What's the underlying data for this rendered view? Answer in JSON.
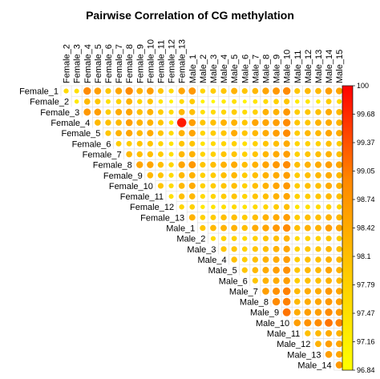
{
  "chart_data": {
    "type": "heatmap",
    "title": "Pairwise Correlation of CG methylation",
    "row_labels": [
      "Female_1",
      "Female_2",
      "Female_3",
      "Female_4",
      "Female_5",
      "Female_6",
      "Female_7",
      "Female_8",
      "Female_9",
      "Female_10",
      "Female_11",
      "Female_12",
      "Female_13",
      "Male_1",
      "Male_2",
      "Male_3",
      "Male_4",
      "Male_5",
      "Male_6",
      "Male_7",
      "Male_8",
      "Male_9",
      "Male_10",
      "Male_11",
      "Male_12",
      "Male_13",
      "Male_14"
    ],
    "col_labels": [
      "Female_2",
      "Female_3",
      "Female_4",
      "Female_5",
      "Female_6",
      "Female_7",
      "Female_8",
      "Female_9",
      "Female_10",
      "Female_11",
      "Female_12",
      "Female_13",
      "Male_1",
      "Male_2",
      "Male_3",
      "Male_4",
      "Male_5",
      "Male_6",
      "Male_7",
      "Male_8",
      "Male_9",
      "Male_10",
      "Male_11",
      "Male_12",
      "Male_13",
      "Male_14",
      "Male_15"
    ],
    "legend_ticks": [
      "100",
      "99.68",
      "99.37",
      "99.05",
      "98.74",
      "98.42",
      "98.1",
      "97.79",
      "97.47",
      "97.16",
      "96.84"
    ],
    "value_range": [
      96.84,
      100
    ],
    "color_scale": [
      "#ffff00",
      "#ffcc00",
      "#ff8800",
      "#ff0000"
    ],
    "shape": "circle",
    "layout": "upper-triangle",
    "values": [
      [
        97.6,
        97.5,
        98.9,
        98.6,
        98.0,
        98.5,
        98.9,
        98.3,
        98.6,
        98.0,
        97.6,
        98.5,
        98.7,
        97.7,
        97.9,
        98.0,
        98.3,
        98.0,
        98.2,
        98.5,
        98.7,
        98.9,
        98.0,
        98.2,
        98.2,
        98.6,
        98.5
      ],
      [
        null,
        97.3,
        98.2,
        98.0,
        97.5,
        97.8,
        98.3,
        97.7,
        98.0,
        97.4,
        97.1,
        97.6,
        97.9,
        97.1,
        97.0,
        97.3,
        97.5,
        97.1,
        97.4,
        97.6,
        97.8,
        98.0,
        97.3,
        97.4,
        97.3,
        97.9,
        97.6
      ],
      [
        null,
        null,
        98.7,
        98.6,
        97.9,
        98.4,
        98.5,
        98.1,
        98.3,
        97.9,
        97.6,
        98.2,
        98.1,
        97.5,
        97.6,
        97.7,
        97.9,
        97.6,
        97.8,
        98.3,
        98.3,
        98.7,
        97.9,
        98.0,
        98.1,
        98.4,
        98.2
      ],
      [
        null,
        null,
        null,
        98.2,
        98.1,
        98.2,
        98.6,
        98.3,
        98.3,
        98.0,
        97.4,
        99.8,
        98.6,
        98.0,
        98.1,
        98.3,
        98.3,
        98.0,
        98.5,
        98.5,
        98.6,
        98.9,
        98.0,
        98.0,
        98.3,
        98.4,
        98.3
      ],
      [
        null,
        null,
        null,
        null,
        98.0,
        98.3,
        98.5,
        98.2,
        98.4,
        98.0,
        97.6,
        98.3,
        98.5,
        97.7,
        97.9,
        98.0,
        98.4,
        98.0,
        98.2,
        98.4,
        98.6,
        98.9,
        97.9,
        98.2,
        98.2,
        98.5,
        98.4
      ],
      [
        null,
        null,
        null,
        null,
        null,
        97.9,
        97.9,
        98.0,
        98.0,
        97.7,
        97.4,
        98.0,
        98.0,
        97.4,
        97.6,
        97.7,
        97.8,
        97.5,
        97.8,
        98.0,
        98.1,
        98.4,
        97.7,
        97.8,
        97.8,
        98.1,
        97.9
      ],
      [
        null,
        null,
        null,
        null,
        null,
        null,
        98.2,
        98.1,
        98.1,
        97.9,
        97.5,
        98.2,
        98.3,
        97.7,
        97.8,
        98.0,
        98.0,
        97.8,
        98.0,
        98.2,
        98.4,
        98.6,
        97.8,
        98.0,
        98.1,
        98.3,
        98.1
      ],
      [
        null,
        null,
        null,
        null,
        null,
        null,
        null,
        98.5,
        98.5,
        98.1,
        97.7,
        98.5,
        98.7,
        98.0,
        98.1,
        98.3,
        98.4,
        98.1,
        98.3,
        98.5,
        98.7,
        98.9,
        98.1,
        98.3,
        98.4,
        98.6,
        98.5
      ],
      [
        null,
        null,
        null,
        null,
        null,
        null,
        null,
        null,
        98.2,
        98.0,
        97.6,
        98.2,
        98.3,
        97.8,
        97.9,
        98.1,
        98.2,
        97.9,
        98.1,
        98.3,
        98.4,
        98.6,
        97.9,
        98.1,
        98.2,
        98.4,
        98.2
      ],
      [
        null,
        null,
        null,
        null,
        null,
        null,
        null,
        null,
        null,
        98.0,
        97.6,
        98.2,
        98.4,
        97.8,
        97.9,
        98.0,
        98.1,
        97.8,
        98.1,
        98.3,
        98.5,
        98.7,
        97.9,
        98.1,
        98.1,
        98.4,
        98.3
      ],
      [
        null,
        null,
        null,
        null,
        null,
        null,
        null,
        null,
        null,
        null,
        97.5,
        98.1,
        98.2,
        97.6,
        97.7,
        97.9,
        98.0,
        97.7,
        98.0,
        98.1,
        98.3,
        98.5,
        97.8,
        97.9,
        98.0,
        98.2,
        98.1
      ],
      [
        null,
        null,
        null,
        null,
        null,
        null,
        null,
        null,
        null,
        null,
        null,
        97.7,
        97.8,
        97.3,
        97.4,
        97.5,
        97.6,
        97.4,
        97.6,
        97.7,
        97.9,
        98.1,
        97.4,
        97.5,
        97.6,
        97.8,
        97.7
      ],
      [
        null,
        null,
        null,
        null,
        null,
        null,
        null,
        null,
        null,
        null,
        null,
        null,
        98.3,
        97.8,
        97.9,
        98.1,
        98.1,
        97.9,
        98.1,
        98.3,
        98.4,
        98.6,
        97.9,
        98.1,
        98.1,
        98.3,
        98.2
      ],
      [
        null,
        null,
        null,
        null,
        null,
        null,
        null,
        null,
        null,
        null,
        null,
        null,
        null,
        98.0,
        98.2,
        98.3,
        98.3,
        98.1,
        98.4,
        98.5,
        98.7,
        98.9,
        98.1,
        98.3,
        98.3,
        98.6,
        98.5
      ],
      [
        null,
        null,
        null,
        null,
        null,
        null,
        null,
        null,
        null,
        null,
        null,
        null,
        null,
        null,
        97.6,
        97.8,
        97.8,
        97.6,
        97.8,
        98.0,
        98.1,
        98.3,
        97.6,
        97.8,
        97.8,
        98.0,
        97.9
      ],
      [
        null,
        null,
        null,
        null,
        null,
        null,
        null,
        null,
        null,
        null,
        null,
        null,
        null,
        null,
        null,
        98.0,
        98.0,
        97.8,
        98.0,
        98.1,
        98.3,
        98.5,
        97.8,
        98.0,
        98.0,
        98.2,
        98.1
      ],
      [
        null,
        null,
        null,
        null,
        null,
        null,
        null,
        null,
        null,
        null,
        null,
        null,
        null,
        null,
        null,
        null,
        98.1,
        97.9,
        98.1,
        98.3,
        98.4,
        98.6,
        97.9,
        98.1,
        98.1,
        98.3,
        98.2
      ],
      [
        null,
        null,
        null,
        null,
        null,
        null,
        null,
        null,
        null,
        null,
        null,
        null,
        null,
        null,
        null,
        null,
        null,
        98.0,
        98.2,
        98.4,
        98.6,
        98.8,
        98.0,
        98.2,
        98.2,
        98.5,
        98.3
      ],
      [
        null,
        null,
        null,
        null,
        null,
        null,
        null,
        null,
        null,
        null,
        null,
        null,
        null,
        null,
        null,
        null,
        null,
        null,
        98.0,
        98.3,
        98.4,
        98.6,
        97.9,
        98.1,
        98.1,
        98.3,
        98.2
      ],
      [
        null,
        null,
        null,
        null,
        null,
        null,
        null,
        null,
        null,
        null,
        null,
        null,
        null,
        null,
        null,
        null,
        null,
        null,
        null,
        98.6,
        98.8,
        99.0,
        98.2,
        98.4,
        98.4,
        98.7,
        98.5
      ],
      [
        null,
        null,
        null,
        null,
        null,
        null,
        null,
        null,
        null,
        null,
        null,
        null,
        null,
        null,
        null,
        null,
        null,
        null,
        null,
        null,
        98.9,
        99.0,
        98.2,
        98.4,
        98.5,
        98.7,
        98.6
      ],
      [
        null,
        null,
        null,
        null,
        null,
        null,
        null,
        null,
        null,
        null,
        null,
        null,
        null,
        null,
        null,
        null,
        null,
        null,
        null,
        null,
        null,
        99.1,
        98.4,
        98.6,
        98.6,
        98.9,
        98.7
      ],
      [
        null,
        null,
        null,
        null,
        null,
        null,
        null,
        null,
        null,
        null,
        null,
        null,
        null,
        null,
        null,
        null,
        null,
        null,
        null,
        null,
        null,
        null,
        98.6,
        98.8,
        98.9,
        99.1,
        99.0
      ],
      [
        null,
        null,
        null,
        null,
        null,
        null,
        null,
        null,
        null,
        null,
        null,
        null,
        null,
        null,
        null,
        null,
        null,
        null,
        null,
        null,
        null,
        null,
        null,
        98.1,
        98.2,
        98.4,
        98.3
      ],
      [
        null,
        null,
        null,
        null,
        null,
        null,
        null,
        null,
        null,
        null,
        null,
        null,
        null,
        null,
        null,
        null,
        null,
        null,
        null,
        null,
        null,
        null,
        null,
        null,
        98.3,
        98.6,
        98.5
      ],
      [
        null,
        null,
        null,
        null,
        null,
        null,
        null,
        null,
        null,
        null,
        null,
        null,
        null,
        null,
        null,
        null,
        null,
        null,
        null,
        null,
        null,
        null,
        null,
        null,
        null,
        98.6,
        98.5
      ],
      [
        null,
        null,
        null,
        null,
        null,
        null,
        null,
        null,
        null,
        null,
        null,
        null,
        null,
        null,
        null,
        null,
        null,
        null,
        null,
        null,
        null,
        null,
        null,
        null,
        null,
        null,
        98.7
      ]
    ]
  }
}
